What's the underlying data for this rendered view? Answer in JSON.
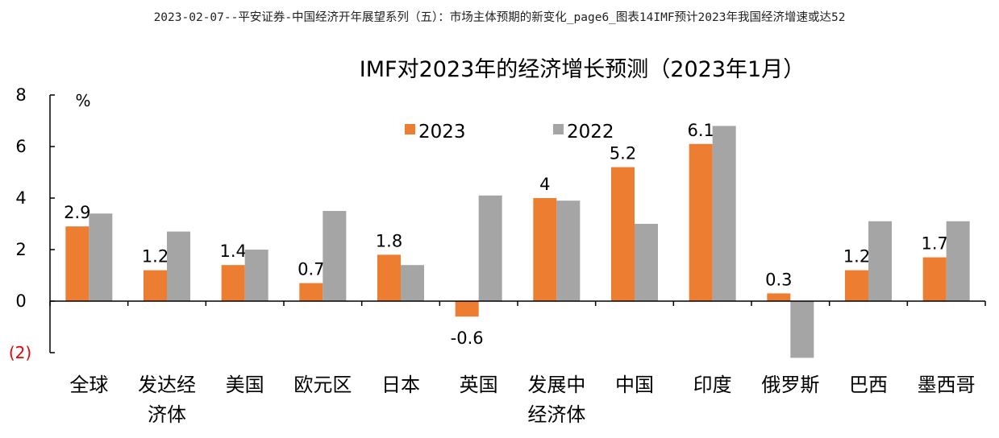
{
  "page_header": "2023-02-07--平安证券-中国经济开年展望系列（五）：市场主体预期的新变化_page6_图表14IMF预计2023年我国经济增速或达52",
  "chart_data": {
    "type": "bar",
    "title": "IMF对2023年的经济增长预测（2023年1月）",
    "unit_label": "%",
    "ylim": [
      -2,
      8
    ],
    "yticks": [
      {
        "value": 8,
        "label": "8"
      },
      {
        "value": 6,
        "label": "6"
      },
      {
        "value": 4,
        "label": "4"
      },
      {
        "value": 2,
        "label": "2"
      },
      {
        "value": 0,
        "label": "0"
      },
      {
        "value": -2,
        "label": "(2)"
      }
    ],
    "negative_tick_color": "#e8000b",
    "grid": false,
    "legend_position": "top-center",
    "categories": [
      [
        "全球"
      ],
      [
        "发达经",
        "济体"
      ],
      [
        "美国"
      ],
      [
        "欧元区"
      ],
      [
        "日本"
      ],
      [
        "英国"
      ],
      [
        "发展中",
        "经济体"
      ],
      [
        "中国"
      ],
      [
        "印度"
      ],
      [
        "俄罗斯"
      ],
      [
        "巴西"
      ],
      [
        "墨西哥"
      ]
    ],
    "series": [
      {
        "name": "2023",
        "color": "#ed7d31",
        "values": [
          2.9,
          1.2,
          1.4,
          0.7,
          1.8,
          -0.6,
          4.0,
          5.2,
          6.1,
          0.3,
          1.2,
          1.7
        ],
        "data_labels": [
          "2.9",
          "1.2",
          "1.4",
          "0.7",
          "1.8",
          "-0.6",
          "4",
          "5.2",
          "6.1",
          "0.3",
          "1.2",
          "1.7"
        ]
      },
      {
        "name": "2022",
        "color": "#a5a5a5",
        "values": [
          3.4,
          2.7,
          2.0,
          3.5,
          1.4,
          4.1,
          3.9,
          3.0,
          6.8,
          -2.2,
          3.1,
          3.1
        ]
      }
    ]
  }
}
